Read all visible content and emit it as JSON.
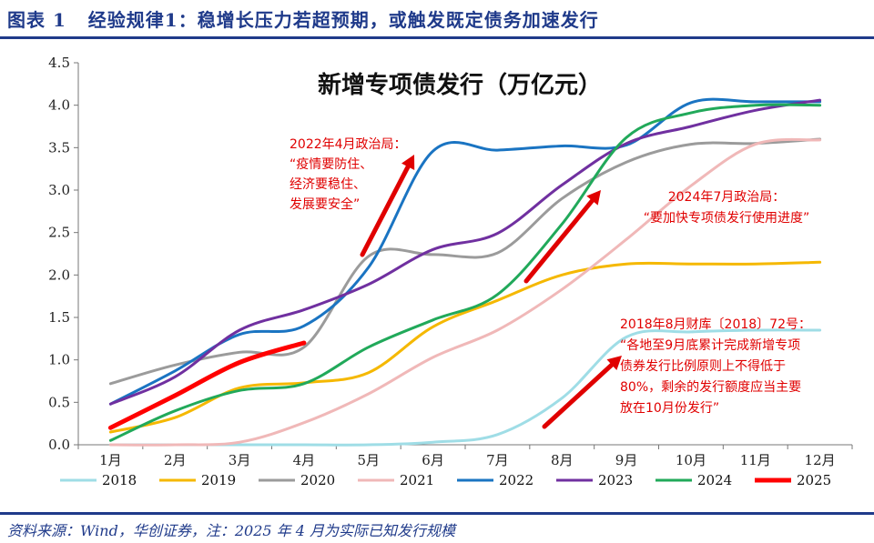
{
  "header": {
    "figure_label": "图表 1",
    "title": "经验规律1：稳增长压力若超预期，或触发既定债务加速发行"
  },
  "footer": {
    "source": "资料来源：Wind，华创证券，注：2025 年 4 月为实际已知发行规模"
  },
  "colors": {
    "header": "#1f3a8a",
    "annotation": "#e00000"
  },
  "chart_data": {
    "type": "line",
    "title": "新增专项债发行（万亿元）",
    "categories": [
      "1月",
      "2月",
      "3月",
      "4月",
      "5月",
      "6月",
      "7月",
      "8月",
      "9月",
      "10月",
      "11月",
      "12月"
    ],
    "ylim": [
      0,
      4.5
    ],
    "yticks": [
      "0.0",
      "0.5",
      "1.0",
      "1.5",
      "2.0",
      "2.5",
      "3.0",
      "3.5",
      "4.0",
      "4.5"
    ],
    "series": [
      {
        "name": "2018",
        "color": "#9fdde6",
        "width": 3,
        "values": [
          0.0,
          0.0,
          0.0,
          0.0,
          0.0,
          0.03,
          0.12,
          0.55,
          1.27,
          1.33,
          1.35,
          1.35
        ]
      },
      {
        "name": "2019",
        "color": "#f5b800",
        "width": 3,
        "values": [
          0.15,
          0.32,
          0.67,
          0.73,
          0.85,
          1.39,
          1.7,
          2.0,
          2.13,
          2.13,
          2.13,
          2.15
        ]
      },
      {
        "name": "2020",
        "color": "#9b9b9b",
        "width": 3,
        "values": [
          0.72,
          0.94,
          1.09,
          1.15,
          2.22,
          2.24,
          2.26,
          2.9,
          3.33,
          3.54,
          3.55,
          3.6
        ]
      },
      {
        "name": "2021",
        "color": "#f0b8b8",
        "width": 3,
        "values": [
          0.0,
          0.0,
          0.03,
          0.26,
          0.6,
          1.03,
          1.35,
          1.83,
          2.42,
          3.05,
          3.54,
          3.59
        ]
      },
      {
        "name": "2022",
        "color": "#1a74c2",
        "width": 3,
        "values": [
          0.48,
          0.87,
          1.3,
          1.4,
          2.09,
          3.46,
          3.47,
          3.52,
          3.53,
          4.03,
          4.04,
          4.04
        ]
      },
      {
        "name": "2023",
        "color": "#7030a0",
        "width": 3,
        "values": [
          0.48,
          0.8,
          1.35,
          1.59,
          1.89,
          2.3,
          2.49,
          3.06,
          3.55,
          3.75,
          3.94,
          4.06
        ]
      },
      {
        "name": "2024",
        "color": "#21a95a",
        "width": 3,
        "values": [
          0.05,
          0.4,
          0.64,
          0.72,
          1.15,
          1.47,
          1.77,
          2.6,
          3.62,
          3.91,
          4.0,
          4.0
        ]
      },
      {
        "name": "2025",
        "color": "#ff0000",
        "width": 5,
        "values": [
          0.2,
          0.58,
          0.97,
          1.2,
          null,
          null,
          null,
          null,
          null,
          null,
          null,
          null
        ]
      }
    ],
    "annotations": [
      {
        "lines": [
          "2022年4月政治局：",
          "“疫情要防住、",
          "经济要稳住、",
          "发展要安全”"
        ]
      },
      {
        "lines": [
          "2024年7月政治局：",
          "“要加快专项债发行使用进度”"
        ]
      },
      {
        "lines": [
          "2018年8月财库〔2018〕72号：",
          "“各地至9月底累计完成新增专项",
          "债券发行比例原则上不得低于",
          "80%，剩余的发行额度应当主要",
          "放在10月份发行”"
        ]
      }
    ]
  }
}
